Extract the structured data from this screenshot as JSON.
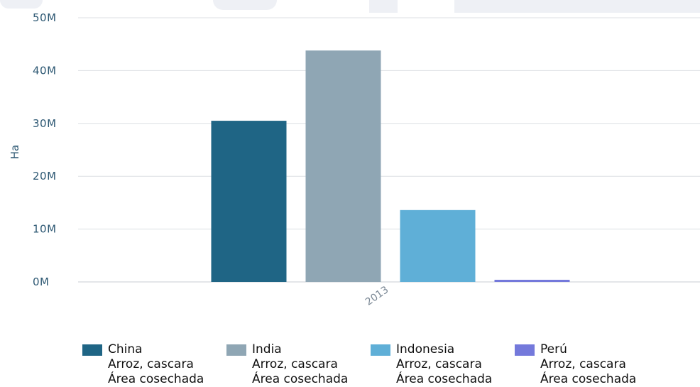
{
  "chart_data": {
    "type": "bar",
    "categories": [
      "2013"
    ],
    "series": [
      {
        "name": "China",
        "line2": "Arroz, cascara",
        "line3": "Área cosechada",
        "color": "#1f6585",
        "values": [
          30500000
        ]
      },
      {
        "name": "India",
        "line2": "Arroz, cascara",
        "line3": "Área cosechada",
        "color": "#8fa6b4",
        "values": [
          43800000
        ]
      },
      {
        "name": "Indonesia",
        "line2": "Arroz, cascara",
        "line3": "Área cosechada",
        "color": "#5fafd7",
        "values": [
          13600000
        ]
      },
      {
        "name": "Perú",
        "line2": "Arroz, cascara",
        "line3": "Área cosechada",
        "color": "#7479db",
        "values": [
          400000
        ]
      }
    ],
    "ylabel": "Ha",
    "ylim": [
      0,
      50000000
    ],
    "yticks": [
      "0M",
      "10M",
      "20M",
      "30M",
      "40M",
      "50M"
    ],
    "grid": true,
    "legend_position": "bottom"
  }
}
